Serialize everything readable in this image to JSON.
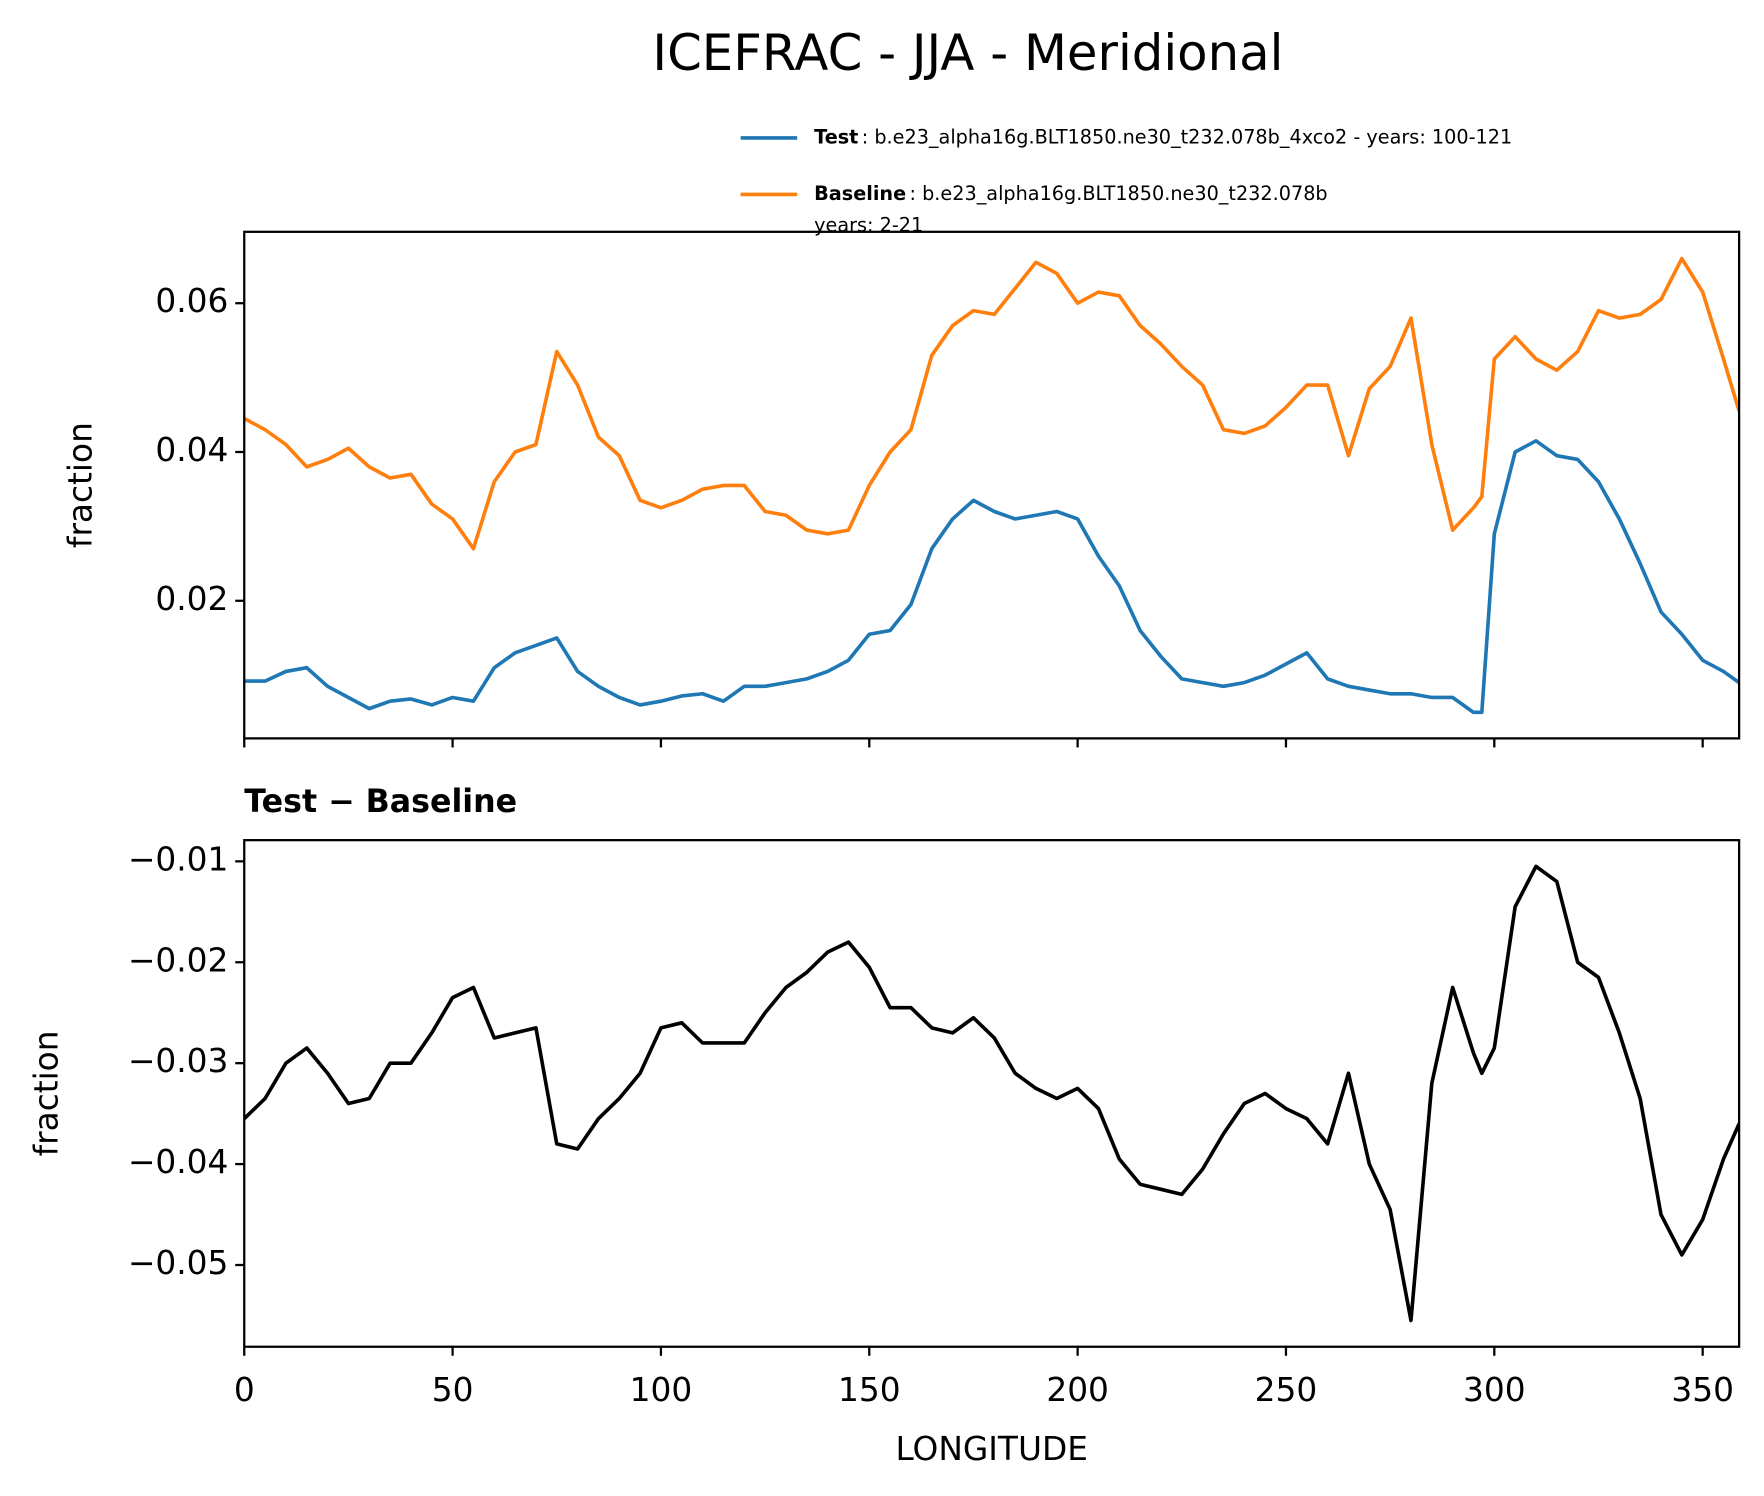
{
  "chart_data": [
    {
      "type": "line",
      "title": "ICEFRAC - JJA - Meridional",
      "ylabel": "fraction",
      "x": [
        0,
        5,
        10,
        15,
        20,
        25,
        30,
        35,
        40,
        45,
        50,
        55,
        60,
        65,
        70,
        75,
        80,
        85,
        90,
        95,
        100,
        105,
        110,
        115,
        120,
        125,
        130,
        135,
        140,
        145,
        150,
        155,
        160,
        165,
        170,
        175,
        180,
        185,
        190,
        195,
        200,
        205,
        210,
        215,
        220,
        225,
        230,
        235,
        240,
        245,
        250,
        255,
        260,
        265,
        270,
        275,
        280,
        285,
        290,
        295,
        297,
        300,
        305,
        310,
        315,
        320,
        325,
        330,
        335,
        340,
        345,
        350,
        355,
        358.75
      ],
      "xlim": [
        0,
        358.75
      ],
      "xticks": [
        0,
        50,
        100,
        150,
        200,
        250,
        300,
        350
      ],
      "xtick_labels": false,
      "ylim": [
        0.0015,
        0.0696
      ],
      "yticks": [
        0.02,
        0.04,
        0.06
      ],
      "legend": "top-right",
      "series": [
        {
          "name": "Test",
          "description": [
            ": b.e23_alpha16g.BLT1850.ne30_t232.078b_4xco2 - years: 100-121"
          ],
          "color": "#1f77b4",
          "values": [
            0.0092,
            0.0092,
            0.0105,
            0.011,
            0.0085,
            0.007,
            0.0055,
            0.0065,
            0.0068,
            0.006,
            0.007,
            0.0065,
            0.011,
            0.013,
            0.014,
            0.015,
            0.0105,
            0.0085,
            0.007,
            0.006,
            0.0065,
            0.0072,
            0.0075,
            0.0065,
            0.0085,
            0.0085,
            0.009,
            0.0095,
            0.0105,
            0.012,
            0.0155,
            0.016,
            0.0195,
            0.027,
            0.031,
            0.0335,
            0.032,
            0.031,
            0.0315,
            0.032,
            0.031,
            0.026,
            0.022,
            0.016,
            0.0125,
            0.0095,
            0.009,
            0.0085,
            0.009,
            0.01,
            0.0115,
            0.013,
            0.0095,
            0.0085,
            0.008,
            0.0075,
            0.0075,
            0.007,
            0.007,
            0.005,
            0.005,
            0.029,
            0.04,
            0.0415,
            0.0395,
            0.039,
            0.036,
            0.031,
            0.025,
            0.0185,
            0.0155,
            0.012,
            0.0105,
            0.009
          ]
        },
        {
          "name": "Baseline",
          "description": [
            ": b.e23_alpha16g.BLT1850.ne30_t232.078b",
            "years: 2-21"
          ],
          "color": "#ff7f0e",
          "values": [
            0.0445,
            0.043,
            0.041,
            0.038,
            0.039,
            0.0405,
            0.038,
            0.0365,
            0.037,
            0.033,
            0.031,
            0.027,
            0.036,
            0.04,
            0.041,
            0.0535,
            0.049,
            0.042,
            0.0395,
            0.0335,
            0.0325,
            0.0335,
            0.035,
            0.0355,
            0.0355,
            0.032,
            0.0315,
            0.0295,
            0.029,
            0.0295,
            0.0355,
            0.04,
            0.043,
            0.053,
            0.057,
            0.059,
            0.0585,
            0.062,
            0.0655,
            0.064,
            0.06,
            0.0615,
            0.061,
            0.057,
            0.0545,
            0.0515,
            0.049,
            0.043,
            0.0425,
            0.0435,
            0.046,
            0.049,
            0.049,
            0.0395,
            0.0485,
            0.0515,
            0.058,
            0.041,
            0.0295,
            0.0325,
            0.034,
            0.0525,
            0.0555,
            0.0525,
            0.051,
            0.0535,
            0.059,
            0.058,
            0.0585,
            0.0605,
            0.066,
            0.0615,
            0.0525,
            0.0455
          ]
        }
      ]
    },
    {
      "type": "line",
      "title": "Test − Baseline",
      "xlabel": "LONGITUDE",
      "ylabel": "fraction",
      "x": [
        0,
        5,
        10,
        15,
        20,
        25,
        30,
        35,
        40,
        45,
        50,
        55,
        60,
        65,
        70,
        75,
        80,
        85,
        90,
        95,
        100,
        105,
        110,
        115,
        120,
        125,
        130,
        135,
        140,
        145,
        150,
        155,
        160,
        165,
        170,
        175,
        180,
        185,
        190,
        195,
        200,
        205,
        210,
        215,
        220,
        225,
        230,
        235,
        240,
        245,
        250,
        255,
        260,
        265,
        270,
        275,
        280,
        285,
        290,
        295,
        297,
        300,
        305,
        310,
        315,
        320,
        325,
        330,
        335,
        340,
        345,
        350,
        355,
        358.75
      ],
      "xlim": [
        0,
        358.75
      ],
      "xticks": [
        0,
        50,
        100,
        150,
        200,
        250,
        300,
        350
      ],
      "xtick_labels": true,
      "ylim": [
        -0.0581,
        -0.0079
      ],
      "yticks": [
        {
          "value": -0.05,
          "label": "−0.05"
        },
        {
          "value": -0.04,
          "label": "−0.04"
        },
        {
          "value": -0.03,
          "label": "−0.03"
        },
        {
          "value": -0.02,
          "label": "−0.02"
        },
        {
          "value": -0.01,
          "label": "−0.01"
        }
      ],
      "series": [
        {
          "color": "#000000",
          "values": [
            -0.0355,
            -0.0335,
            -0.03,
            -0.0285,
            -0.031,
            -0.034,
            -0.0335,
            -0.03,
            -0.03,
            -0.027,
            -0.0235,
            -0.0225,
            -0.0275,
            -0.027,
            -0.0265,
            -0.038,
            -0.0385,
            -0.0355,
            -0.0335,
            -0.031,
            -0.0265,
            -0.026,
            -0.028,
            -0.028,
            -0.028,
            -0.025,
            -0.0225,
            -0.021,
            -0.019,
            -0.018,
            -0.0205,
            -0.0245,
            -0.0245,
            -0.0265,
            -0.027,
            -0.0255,
            -0.0275,
            -0.031,
            -0.0325,
            -0.0335,
            -0.0325,
            -0.0345,
            -0.0395,
            -0.042,
            -0.0425,
            -0.043,
            -0.0405,
            -0.037,
            -0.034,
            -0.033,
            -0.0345,
            -0.0355,
            -0.038,
            -0.031,
            -0.04,
            -0.0445,
            -0.0555,
            -0.032,
            -0.0225,
            -0.029,
            -0.031,
            -0.0285,
            -0.0145,
            -0.0105,
            -0.012,
            -0.02,
            -0.0215,
            -0.027,
            -0.0335,
            -0.045,
            -0.049,
            -0.0455,
            -0.0395,
            -0.036
          ]
        }
      ]
    }
  ]
}
